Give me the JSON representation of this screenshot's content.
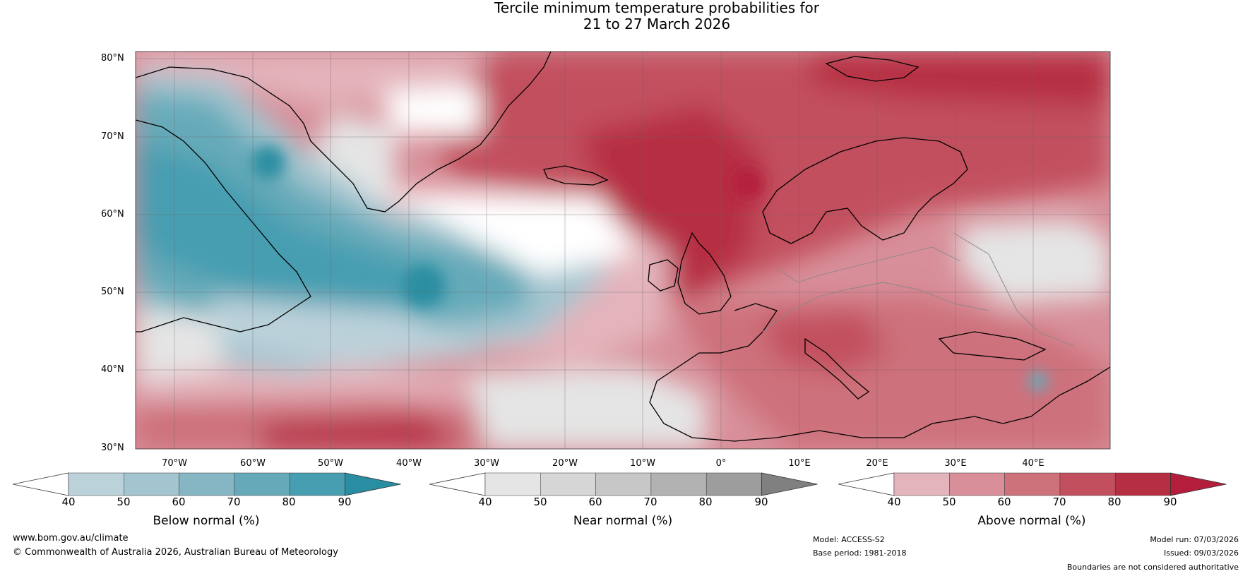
{
  "title_line1": "Tercile minimum temperature probabilities for",
  "title_line2": "21 to 27 March 2026",
  "latitude_labels": [
    "80°N",
    "70°N",
    "60°N",
    "50°N",
    "40°N",
    "30°N"
  ],
  "longitude_labels": [
    "70°W",
    "60°W",
    "50°W",
    "40°W",
    "30°W",
    "20°W",
    "10°W",
    "0°",
    "10°E",
    "20°E",
    "30°E",
    "40°E"
  ],
  "colorbars": [
    {
      "name": "below",
      "title": "Below normal (%)",
      "ticks": [
        "40",
        "50",
        "60",
        "70",
        "80",
        "90"
      ],
      "colors": [
        "#ffffff",
        "#bcd2da",
        "#a3c5cf",
        "#86b6c4",
        "#66aab9",
        "#479eb1",
        "#2a8ea2"
      ]
    },
    {
      "name": "near",
      "title": "Near normal (%)",
      "ticks": [
        "40",
        "50",
        "60",
        "70",
        "80",
        "90"
      ],
      "colors": [
        "#ffffff",
        "#e5e5e5",
        "#d6d6d6",
        "#c7c7c7",
        "#b2b2b2",
        "#9d9d9d",
        "#808080"
      ]
    },
    {
      "name": "above",
      "title": "Above normal (%)",
      "ticks": [
        "40",
        "50",
        "60",
        "70",
        "80",
        "90"
      ],
      "colors": [
        "#ffffff",
        "#e4b4bc",
        "#d88f99",
        "#cd717b",
        "#c24f5d",
        "#b62e42",
        "#b41e3c"
      ]
    }
  ],
  "footer": {
    "website": "www.bom.gov.au/climate",
    "copyright": "© Commonwealth of Australia 2026, Australian Bureau of Meteorology",
    "model": "Model: ACCESS-S2",
    "base_period": "Base period: 1981-2018",
    "model_run": "Model run: 07/03/2026",
    "issued": "Issued: 09/03/2026",
    "disclaimer": "Boundaries are not considered authoritative"
  }
}
